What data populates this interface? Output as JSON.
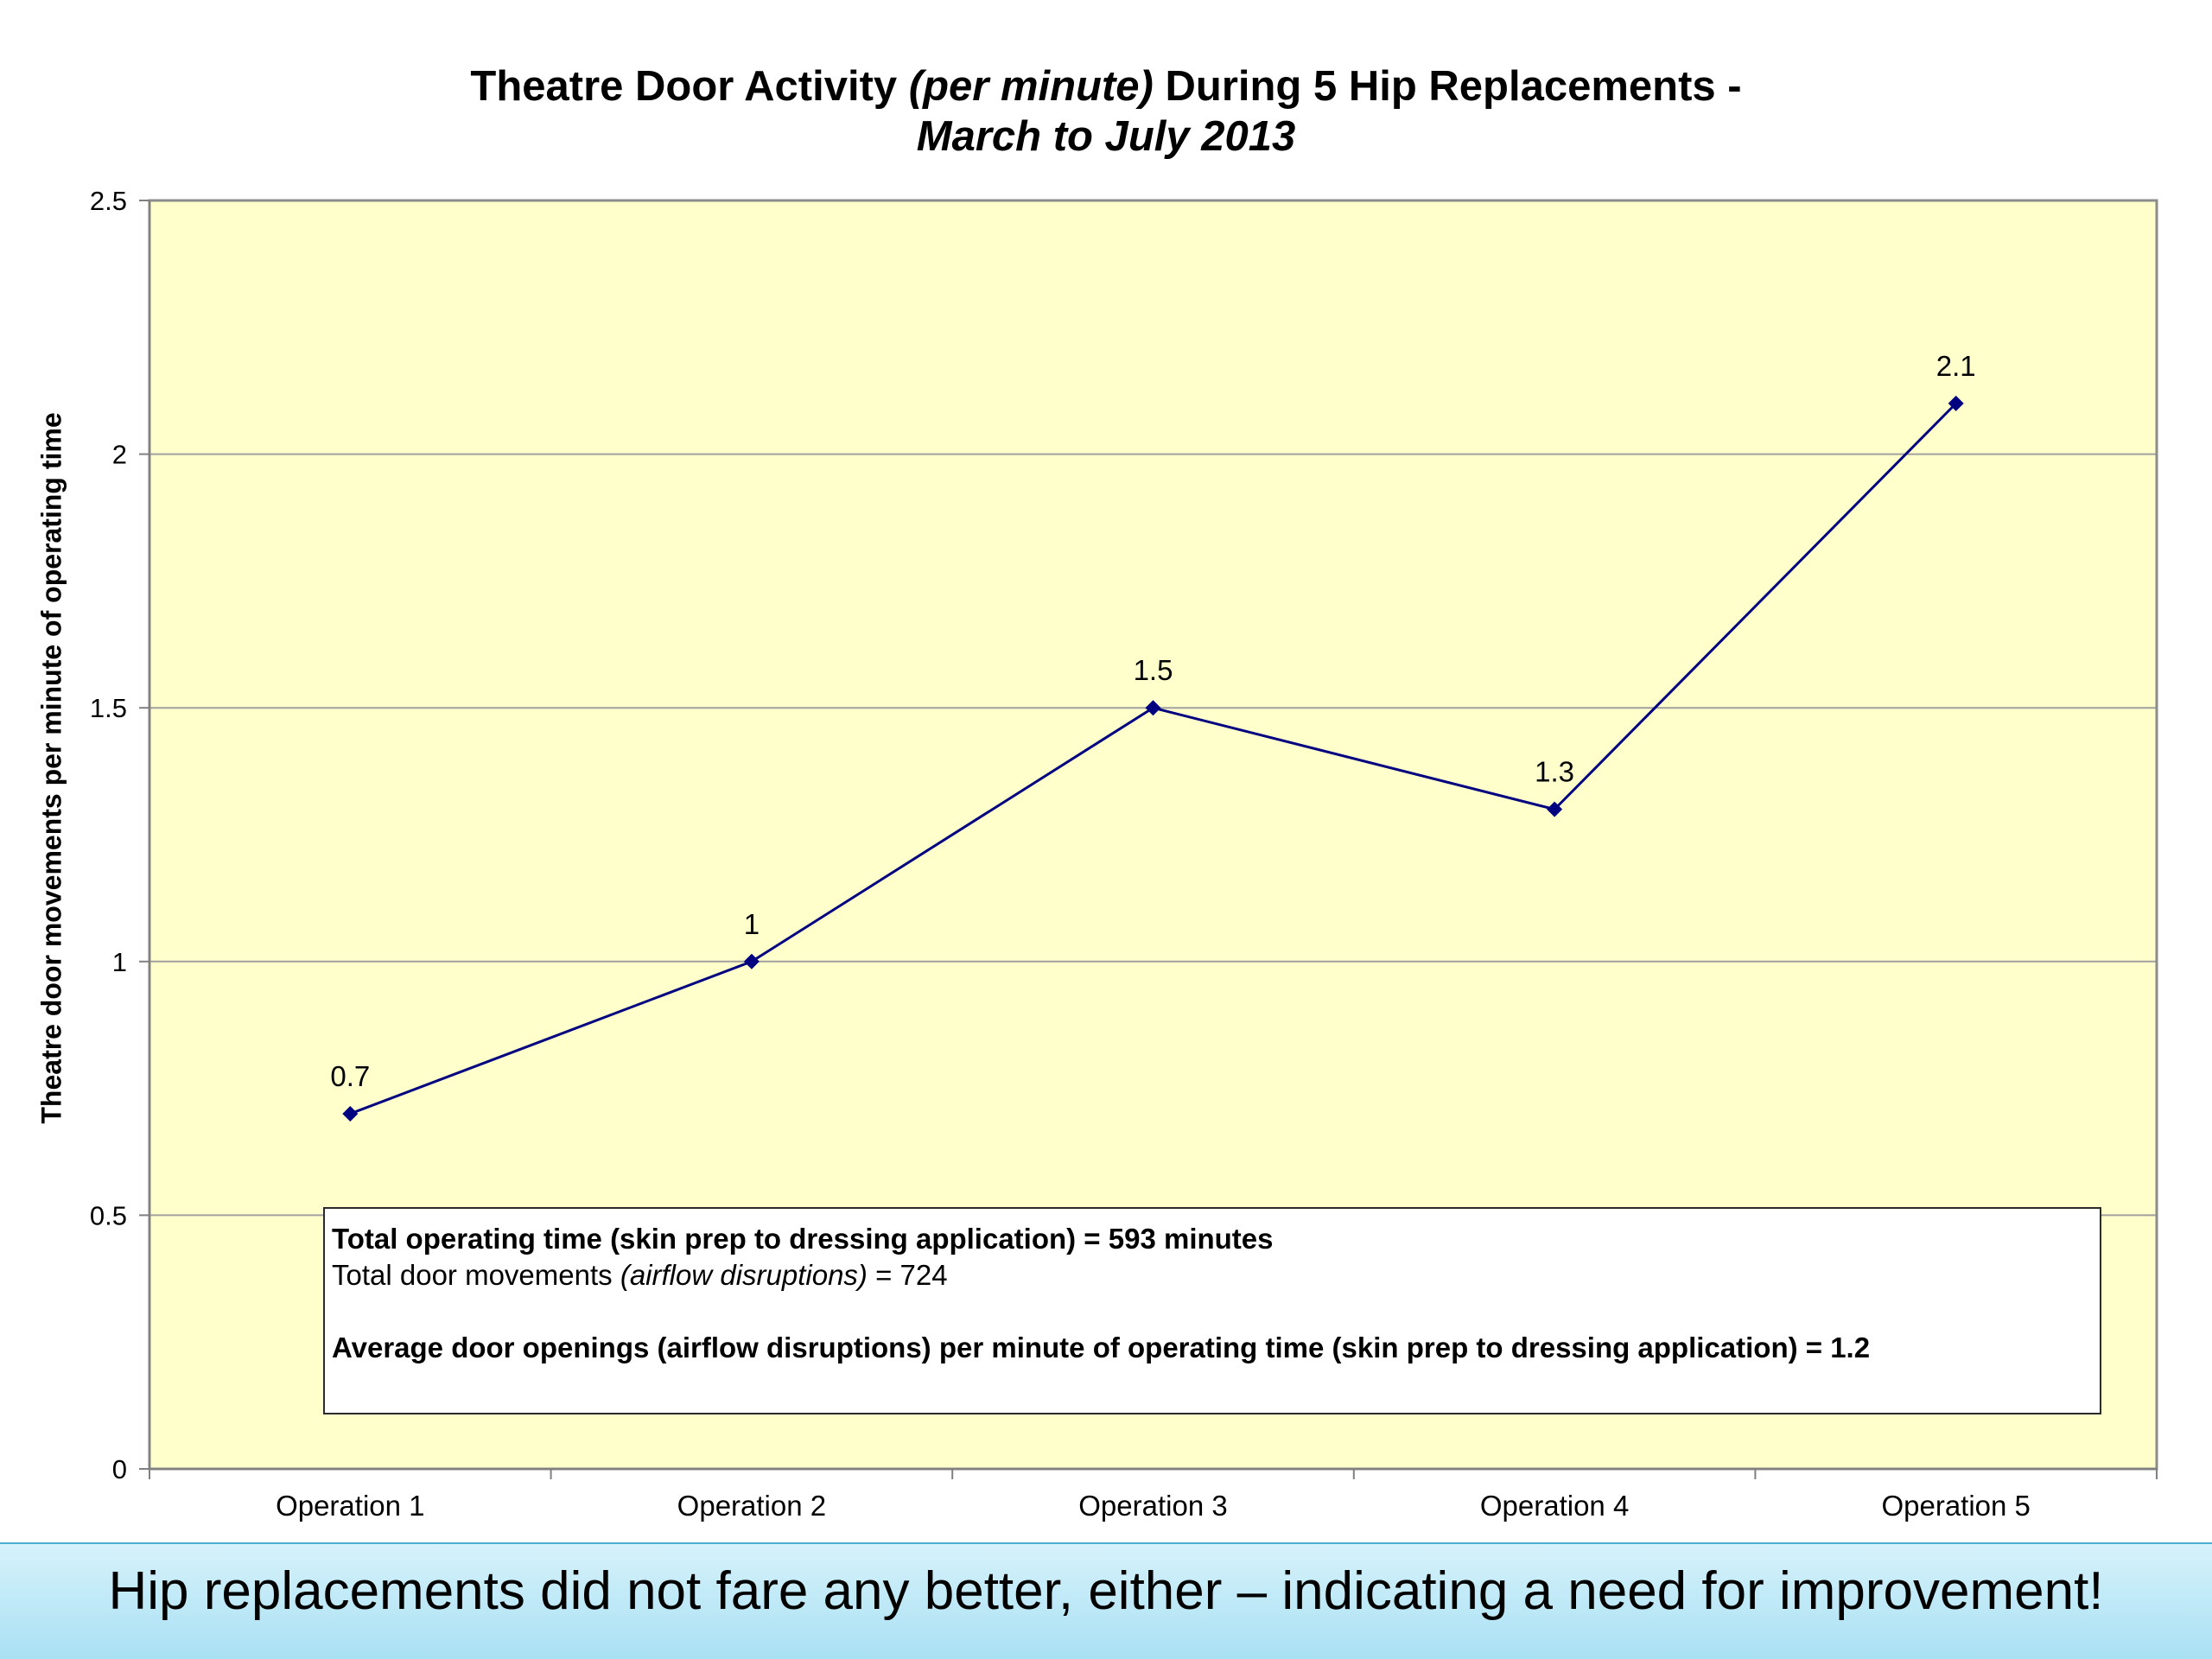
{
  "title": {
    "line1_a": "Theatre Door Activity ",
    "line1_italic": "(per minute)",
    "line1_b": " During 5 Hip Replacements -",
    "line2": "March to July 2013"
  },
  "info_box": {
    "line1": "Total operating time (skin prep to dressing application) = 593 minutes",
    "line2_a": "Total door movements ",
    "line2_italic": "(airflow disruptions)",
    "line2_b": " = 724",
    "line3": "Average door openings (airflow disruptions) per minute of operating time (skin prep to dressing application) = 1.2"
  },
  "banner": {
    "text": "Hip replacements did not fare any better, either – indicating a need for improvement!"
  },
  "colors": {
    "plot_background": "#ffffcc",
    "series_line": "#000080",
    "gridline": "#a0a0a0",
    "banner_background": "#bfe9f7"
  },
  "chart_data": {
    "type": "line",
    "title": "Theatre Door Activity (per minute) During 5 Hip Replacements - March to July 2013",
    "xlabel": "",
    "ylabel": "Theatre door movements per minute of operating time",
    "categories": [
      "Operation 1",
      "Operation 2",
      "Operation 3",
      "Operation 4",
      "Operation 5"
    ],
    "series": [
      {
        "values": [
          0.7,
          1,
          1.5,
          1.3,
          2.1
        ],
        "data_labels": [
          "0.7",
          "1",
          "1.5",
          "1.3",
          "2.1"
        ],
        "marker": "diamond"
      }
    ],
    "ylim": [
      0,
      2.5
    ],
    "yticks": [
      0,
      0.5,
      1,
      1.5,
      2,
      2.5
    ],
    "ytick_labels": [
      "0",
      "0.5",
      "1",
      "1.5",
      "2",
      "2.5"
    ],
    "grid": true,
    "legend": "none"
  }
}
